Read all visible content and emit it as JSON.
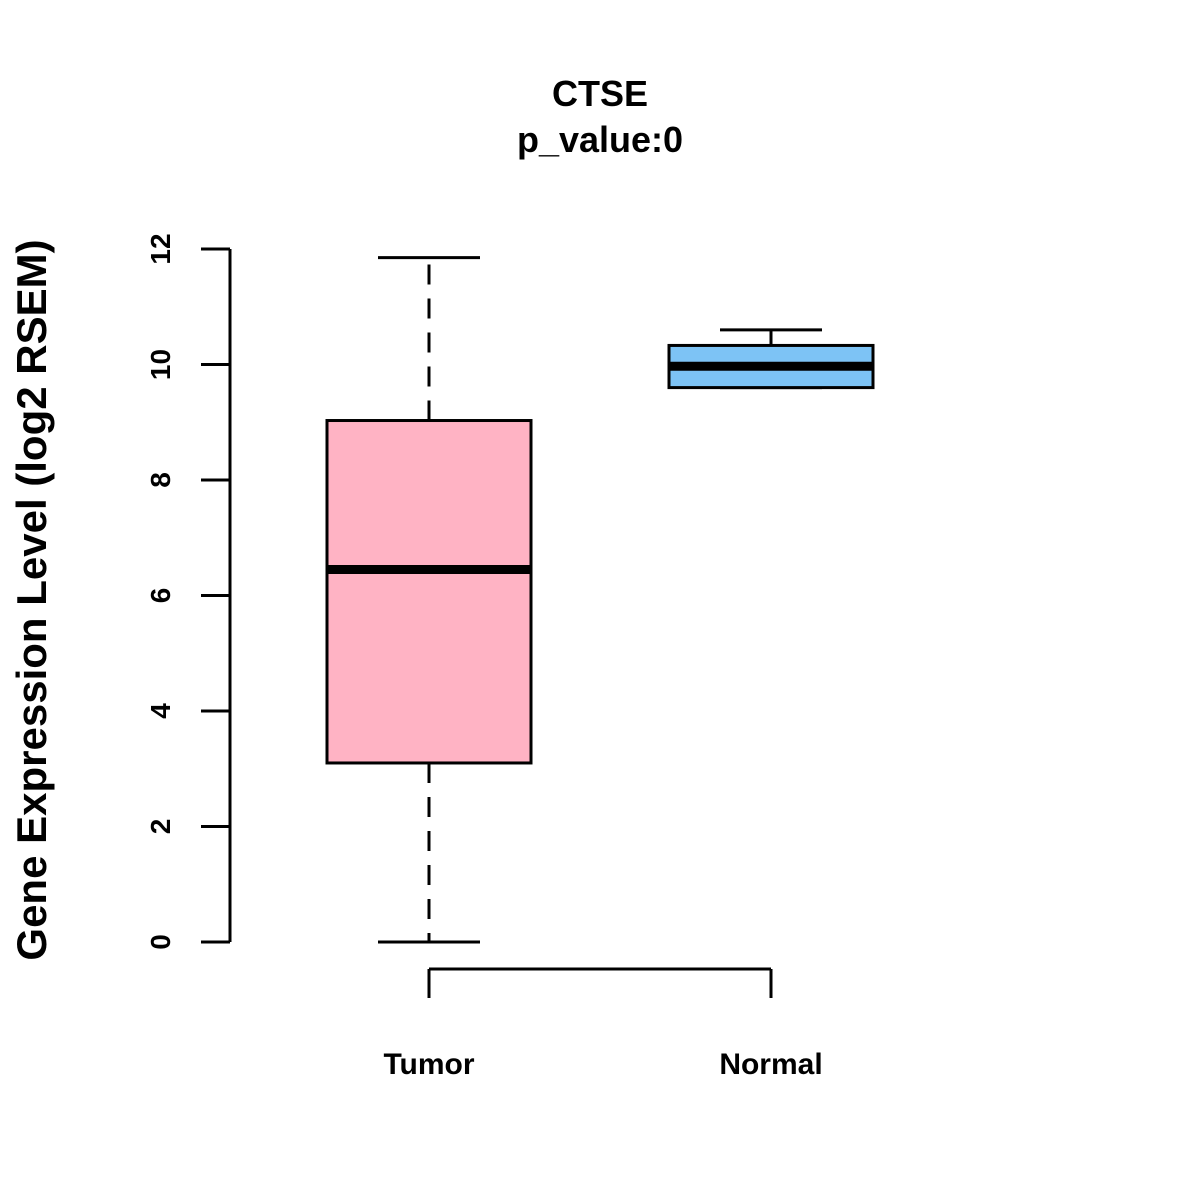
{
  "chart_data": {
    "type": "boxplot",
    "title": "CTSE",
    "subtitle": "p_value:0",
    "xlabel": "",
    "ylabel": "Gene Expression Level (log2 RSEM)",
    "ylim": [
      0,
      12
    ],
    "yticks": [
      0,
      2,
      4,
      6,
      8,
      10,
      12
    ],
    "grid": false,
    "series": [
      {
        "name": "Tumor",
        "color": "#FFB3C4",
        "whisker_low": 0,
        "q1": 3.1,
        "median": 6.45,
        "q3": 9.03,
        "whisker_high": 11.85
      },
      {
        "name": "Normal",
        "color": "#7DC3F5",
        "whisker_low": 9.6,
        "q1": 9.6,
        "median": 9.97,
        "q3": 10.33,
        "whisker_high": 10.6
      }
    ]
  }
}
